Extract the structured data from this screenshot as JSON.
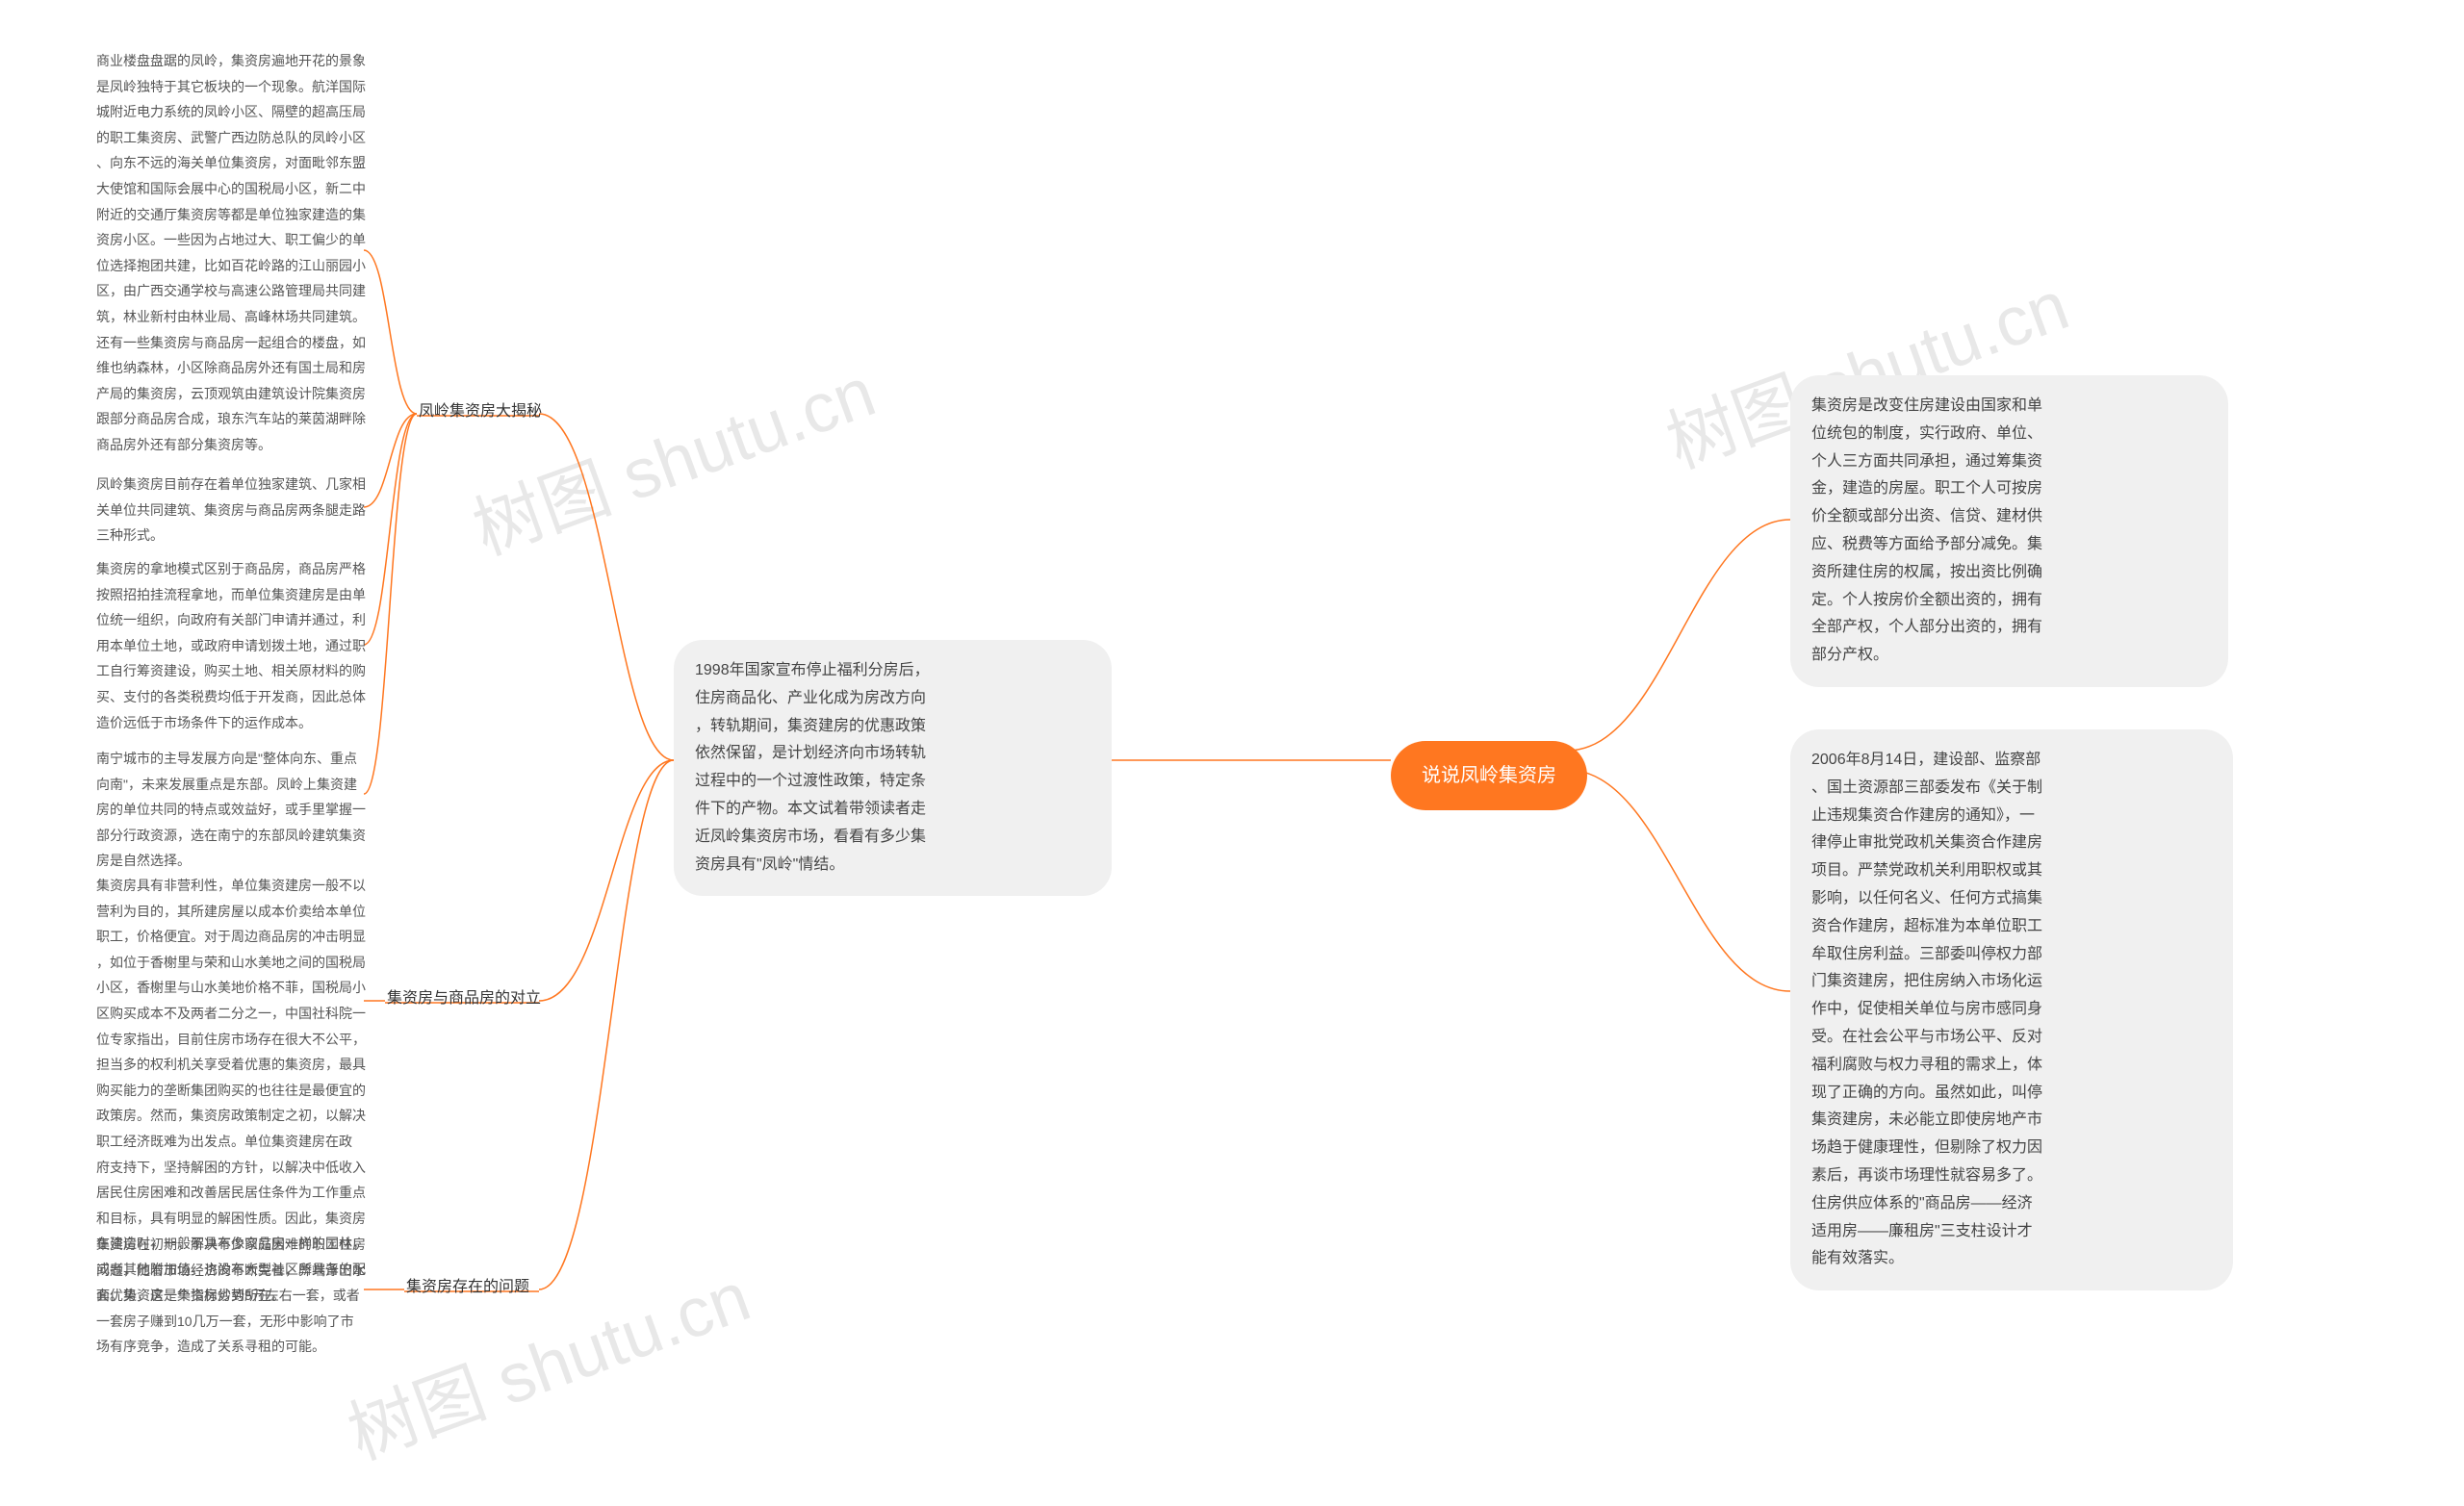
{
  "root": {
    "label": "说说凤岭集资房"
  },
  "left_intro": {
    "text": "1998年国家宣布停止福利分房后，\n住房商品化、产业化成为房改方向\n，转轨期间，集资建房的优惠政策\n依然保留，是计划经济向市场转轨\n过程中的一个过渡性政策，特定条\n件下的产物。本文试着带领读者走\n近凤岭集资房市场，看看有多少集\n资房具有\"凤岭\"情结。"
  },
  "right_nodes": {
    "top": {
      "text": "集资房是改变住房建设由国家和单\n位统包的制度，实行政府、单位、\n个人三方面共同承担，通过筹集资\n金，建造的房屋。职工个人可按房\n价全额或部分出资、信贷、建材供\n应、税费等方面给予部分减免。集\n资所建住房的权属，按出资比例确\n定。个人按房价全额出资的，拥有\n全部产权，个人部分出资的，拥有\n部分产权。"
    },
    "bottom": {
      "text": "2006年8月14日，建设部、监察部\n、国土资源部三部委发布《关于制\n止违规集资合作建房的通知》，一\n律停止审批党政机关集资合作建房\n项目。严禁党政机关利用职权或其\n影响，以任何名义、任何方式搞集\n资合作建房，超标准为本单位职工\n牟取住房利益。三部委叫停权力部\n门集资建房，把住房纳入市场化运\n作中，促使相关单位与房市感同身\n受。在社会公平与市场公平、反对\n福利腐败与权力寻租的需求上，体\n现了正确的方向。虽然如此，叫停\n集资建房，未必能立即使房地产市\n场趋于健康理性，但剔除了权力因\n素后，再谈市场理性就容易多了。\n住房供应体系的\"商品房——经济\n适用房——廉租房\"三支柱设计才\n能有效落实。"
    }
  },
  "left_branches": {
    "b1": {
      "label": "凤岭集资房大揭秘"
    },
    "b2": {
      "label": "集资房与商品房的对立"
    },
    "b3": {
      "label": "集资房存在的问题"
    }
  },
  "left_details": {
    "d1a": {
      "text": "商业楼盘盘踞的凤岭，集资房遍地开花的景象\n是凤岭独特于其它板块的一个现象。航洋国际\n城附近电力系统的凤岭小区、隔壁的超高压局\n的职工集资房、武警广西边防总队的凤岭小区\n、向东不远的海关单位集资房，对面毗邻东盟\n大使馆和国际会展中心的国税局小区，新二中\n附近的交通厅集资房等都是单位独家建造的集\n资房小区。一些因为占地过大、职工偏少的单\n位选择抱团共建，比如百花岭路的江山丽园小\n区，由广西交通学校与高速公路管理局共同建\n筑，林业新村由林业局、高峰林场共同建筑。\n还有一些集资房与商品房一起组合的楼盘，如\n维也纳森林，小区除商品房外还有国土局和房\n产局的集资房，云顶观筑由建筑设计院集资房\n跟部分商品房合成，琅东汽车站的莱茵湖畔除\n商品房外还有部分集资房等。"
    },
    "d1b": {
      "text": "凤岭集资房目前存在着单位独家建筑、几家相\n关单位共同建筑、集资房与商品房两条腿走路\n三种形式。"
    },
    "d1c": {
      "text": "集资房的拿地模式区别于商品房，商品房严格\n按照招拍挂流程拿地，而单位集资建房是由单\n位统一组织，向政府有关部门申请并通过，利\n用本单位土地，或政府申请划拨土地，通过职\n工自行筹资建设，购买土地、相关原材料的购\n买、支付的各类税费均低于开发商，因此总体\n造价远低于市场条件下的运作成本。"
    },
    "d1d": {
      "text": "南宁城市的主导发展方向是\"整体向东、重点\n向南\"，未来发展重点是东部。凤岭上集资建\n房的单位共同的特点或效益好，或手里掌握一\n部分行政资源，选在南宁的东部凤岭建筑集资\n房是自然选择。"
    },
    "d2": {
      "text": "集资房具有非营利性，单位集资建房一般不以\n营利为目的，其所建房屋以成本价卖给本单位\n职工，价格便宜。对于周边商品房的冲击明显\n，如位于香榭里与荣和山水美地之间的国税局\n小区，香榭里与山水美地价格不菲，国税局小\n区购买成本不及两者二分之一，中国社科院一\n位专家指出，目前住房市场存在很大不公平，\n担当多的权利机关享受着优惠的集资房，最具\n购买能力的垄断集团购买的也往往是最便宜的\n政策房。然而，集资房政策制定之初，以解决\n职工经济既难为出发点。单位集资建房在政\n府支持下，坚持解困的方针，以解决中低收入\n居民住房困难和改善居民居住条件为工作重点\n和目标，具有明显的解困性质。因此，集资房\n在建造时，一般不具有像商品房一样的园林，\n或者其他附加值，也没有大型社区所具备的配\n套优势，这是集资房劣势所在。"
    },
    "d3": {
      "text": "集资房在初期，解决不少家庭困难的职工住房\n问题，随着市场经济的不断完善，弊端浮出水\n面。集资房一个指标炒到5万左右一套，或者\n一套房子赚到10几万一套，无形中影响了市\n场有序竞争，造成了关系寻租的可能。"
    }
  },
  "watermarks": {
    "wm1": "树图 shutu.cn",
    "wm2": "树图 shutu.cn",
    "wm3": "树图 shutu.cn"
  },
  "colors": {
    "accent": "#ff7720",
    "node_bg": "#f0f0f0",
    "text": "#444",
    "detail_text": "#555"
  }
}
